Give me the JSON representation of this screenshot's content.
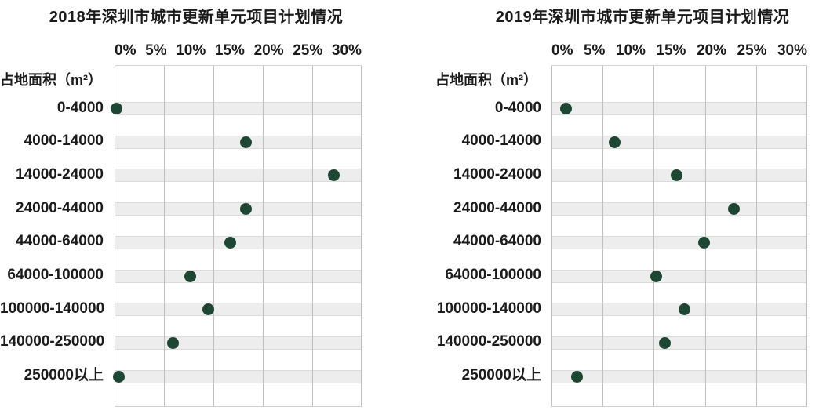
{
  "page": {
    "background_color": "#ffffff",
    "text_color": "#1b1b1b"
  },
  "chart_data": [
    {
      "type": "scatter",
      "title": "2018年深圳市城市更新单元项目计划情况",
      "ylabel": "占地面积（m²）",
      "x_ticks": [
        "0%",
        "5%",
        "10%",
        "15%",
        "20%",
        "25%",
        "30%"
      ],
      "xlim": [
        0,
        30
      ],
      "x_gridline_step_pct": 6,
      "unit": "%",
      "categories": [
        "0-4000",
        "4000-14000",
        "14000-24000",
        "24000-44000",
        "44000-64000",
        "64000-100000",
        "100000-140000",
        "140000-250000",
        "250000以上"
      ],
      "values": [
        0.2,
        16.0,
        26.6,
        16.0,
        14.0,
        9.2,
        11.4,
        7.1,
        0.5
      ],
      "dot_color": "#1e4634",
      "stripe_color": "#ecedec",
      "grid_color": "#bfc1bf",
      "legend": "none",
      "layout": "horizontal dot plot, category zebra stripes, x axis on top"
    },
    {
      "type": "scatter",
      "title": "2019年深圳市城市更新单元项目计划情况",
      "ylabel": "占地面积（m²）",
      "x_ticks": [
        "0%",
        "5%",
        "10%",
        "15%",
        "20%",
        "25%",
        "30%"
      ],
      "xlim": [
        0,
        30
      ],
      "x_gridline_step_pct": 6,
      "unit": "%",
      "categories": [
        "0-4000",
        "4000-14000",
        "14000-24000",
        "24000-44000",
        "44000-64000",
        "64000-100000",
        "100000-140000",
        "140000-250000",
        "250000以上"
      ],
      "values": [
        1.7,
        7.4,
        14.7,
        21.4,
        17.9,
        12.3,
        15.6,
        13.3,
        3.0
      ],
      "dot_color": "#1e4634",
      "stripe_color": "#ecedec",
      "grid_color": "#bfc1bf",
      "legend": "none",
      "layout": "horizontal dot plot, category zebra stripes, x axis on top"
    }
  ]
}
